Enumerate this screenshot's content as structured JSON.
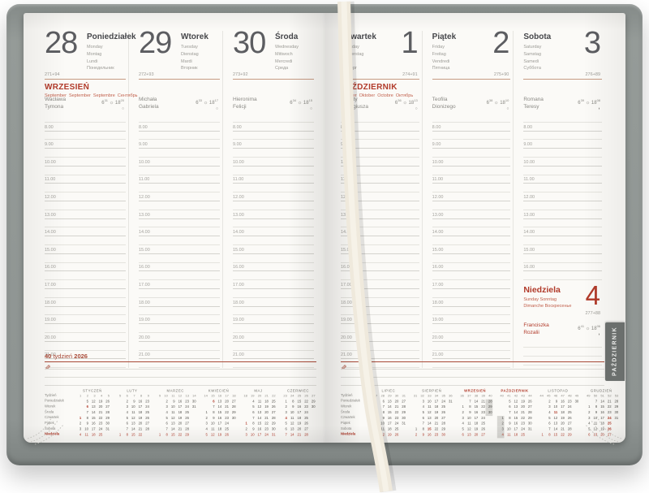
{
  "colors": {
    "accent_red": "#b13a2a",
    "rule_red": "#a94a38",
    "tan_divider": "#c79b83",
    "cover_gray": "#8e9492",
    "highlight_gray": "#d7d6d2"
  },
  "icons": {
    "sun": "☼",
    "pen": "✎"
  },
  "book": {
    "tab": "PAŹDZIERNIK",
    "week_label": {
      "week": "40",
      "word": "tydzień",
      "year": "2026"
    },
    "month_headers": {
      "left": {
        "title": "WRZESIEŃ",
        "subtitle": "September  September  Septembre  Сентябрь"
      },
      "right": {
        "title": "PAŹDZIERNIK",
        "subtitle": "October  Oktober  Octobre  Октябрь"
      }
    },
    "hours": [
      "8.00",
      "9.00",
      "10.00",
      "11.00",
      "12.00",
      "13.00",
      "14.00",
      "15.00",
      "16.00",
      "17.00",
      "18.00",
      "19.00",
      "20.00",
      "21.00"
    ],
    "days": [
      {
        "num": "28",
        "weekday": "Poniedziałek",
        "translations": [
          "Monday",
          "Montag",
          "Lundi",
          "Понедельник"
        ],
        "day_counter": "271+94",
        "name_days": [
          "Wacława",
          "Tymona"
        ],
        "sunrise": [
          "6",
          "31"
        ],
        "sunset": [
          "18",
          "20"
        ],
        "moon": "○",
        "page": "left",
        "month_header": true
      },
      {
        "num": "29",
        "weekday": "Wtorek",
        "translations": [
          "Tuesday",
          "Dienstag",
          "Mardi",
          "Вторник"
        ],
        "day_counter": "272+93",
        "name_days": [
          "Michała",
          "Gabriela"
        ],
        "sunrise": [
          "6",
          "33"
        ],
        "sunset": [
          "18",
          "17"
        ],
        "moon": "○",
        "page": "left"
      },
      {
        "num": "30",
        "weekday": "Środa",
        "translations": [
          "Wednesday",
          "Mittwoch",
          "Mercredi",
          "Среда"
        ],
        "day_counter": "273+92",
        "name_days": [
          "Hieronima",
          "Felicji"
        ],
        "sunrise": [
          "6",
          "34"
        ],
        "sunset": [
          "18",
          "15"
        ],
        "moon": "○",
        "page": "left"
      },
      {
        "num": "1",
        "weekday": "Czwartek",
        "translations": [
          "Thursday",
          "Donnerstag",
          "Jeudi",
          "Четверг"
        ],
        "day_counter": "274+91",
        "name_days": [
          "Danuty",
          "Remigiusza"
        ],
        "sunrise": [
          "6",
          "36"
        ],
        "sunset": [
          "18",
          "13"
        ],
        "moon": "○",
        "page": "right",
        "month_header": true
      },
      {
        "num": "2",
        "weekday": "Piątek",
        "translations": [
          "Friday",
          "Freitag",
          "Vendredi",
          "Пятница"
        ],
        "day_counter": "275+90",
        "name_days": [
          "Teofila",
          "Dionizego"
        ],
        "sunrise": [
          "6",
          "38"
        ],
        "sunset": [
          "18",
          "10"
        ],
        "moon": "○",
        "page": "right"
      },
      {
        "num": "3",
        "weekday": "Sobota",
        "translations": [
          "Saturday",
          "Samstag",
          "Samedi",
          "Суббота"
        ],
        "day_counter": "276+89",
        "name_days": [
          "Romana",
          "Teresy"
        ],
        "sunrise": [
          "6",
          "39"
        ],
        "sunset": [
          "18",
          "08"
        ],
        "moon": "◗",
        "page": "right",
        "saturday": true,
        "hours_count": 9
      }
    ],
    "sunday": {
      "num": "4",
      "weekday": "Niedziela",
      "translations_line1": "Sunday Sonntag",
      "translations_line2": "Dimanche Воскресенье",
      "day_counter": "277+88",
      "name_days": [
        "Franciszka",
        "Rozalii"
      ],
      "sunrise": [
        "6",
        "41"
      ],
      "sunset": [
        "18",
        "06"
      ],
      "moon": "◗"
    }
  },
  "minical": {
    "row_labels": [
      "Tydzień",
      "Poniedziałek",
      "Wtorek",
      "Środa",
      "Czwartek",
      "Piątek",
      "Sobota",
      "Niedziela"
    ],
    "left_months": [
      {
        "name": "STYCZEŃ",
        "weeks": [
          "1",
          "2",
          "3",
          "4",
          "5"
        ],
        "red": [
          1,
          6
        ],
        "hl": [],
        "rows": [
          [
            "",
            "5",
            "12",
            "19",
            "26"
          ],
          [
            "",
            "6",
            "13",
            "20",
            "27"
          ],
          [
            "",
            "7",
            "14",
            "21",
            "28"
          ],
          [
            "1",
            "8",
            "15",
            "22",
            "29"
          ],
          [
            "2",
            "9",
            "16",
            "23",
            "30"
          ],
          [
            "3",
            "10",
            "17",
            "24",
            "31"
          ],
          [
            "4",
            "11",
            "18",
            "25",
            ""
          ]
        ]
      },
      {
        "name": "LUTY",
        "weeks": [
          "5",
          "6",
          "7",
          "8",
          "9"
        ],
        "red": [],
        "hl": [],
        "rows": [
          [
            "",
            "2",
            "9",
            "16",
            "23"
          ],
          [
            "",
            "3",
            "10",
            "17",
            "24"
          ],
          [
            "",
            "4",
            "11",
            "18",
            "25"
          ],
          [
            "",
            "5",
            "12",
            "19",
            "26"
          ],
          [
            "",
            "6",
            "13",
            "20",
            "27"
          ],
          [
            "",
            "7",
            "14",
            "21",
            "28"
          ],
          [
            "1",
            "8",
            "15",
            "22",
            ""
          ]
        ]
      },
      {
        "name": "MARZEC",
        "weeks": [
          "9",
          "10",
          "11",
          "12",
          "13",
          "14"
        ],
        "red": [],
        "hl": [],
        "rows": [
          [
            "",
            "2",
            "9",
            "16",
            "23",
            "30"
          ],
          [
            "",
            "3",
            "10",
            "17",
            "24",
            "31"
          ],
          [
            "",
            "4",
            "11",
            "18",
            "25",
            ""
          ],
          [
            "",
            "5",
            "12",
            "19",
            "26",
            ""
          ],
          [
            "",
            "6",
            "13",
            "20",
            "27",
            ""
          ],
          [
            "",
            "7",
            "14",
            "21",
            "28",
            ""
          ],
          [
            "1",
            "8",
            "15",
            "22",
            "29",
            ""
          ]
        ]
      },
      {
        "name": "KWIECIEŃ",
        "weeks": [
          "14",
          "15",
          "16",
          "17",
          "18"
        ],
        "red": [
          6
        ],
        "hl": [],
        "rows": [
          [
            "",
            "6",
            "13",
            "20",
            "27"
          ],
          [
            "",
            "7",
            "14",
            "21",
            "28"
          ],
          [
            "1",
            "8",
            "15",
            "22",
            "29"
          ],
          [
            "2",
            "9",
            "16",
            "23",
            "30"
          ],
          [
            "3",
            "10",
            "17",
            "24",
            ""
          ],
          [
            "4",
            "11",
            "18",
            "25",
            ""
          ],
          [
            "5",
            "12",
            "19",
            "26",
            ""
          ]
        ]
      },
      {
        "name": "MAJ",
        "weeks": [
          "18",
          "19",
          "20",
          "21",
          "22"
        ],
        "red": [
          1
        ],
        "hl": [],
        "rows": [
          [
            "",
            "4",
            "11",
            "18",
            "25"
          ],
          [
            "",
            "5",
            "12",
            "19",
            "26"
          ],
          [
            "",
            "6",
            "13",
            "20",
            "27"
          ],
          [
            "",
            "7",
            "14",
            "21",
            "28"
          ],
          [
            "1",
            "8",
            "15",
            "22",
            "29"
          ],
          [
            "2",
            "9",
            "16",
            "23",
            "30"
          ],
          [
            "3",
            "10",
            "17",
            "24",
            "31"
          ]
        ]
      },
      {
        "name": "CZERWIEC",
        "weeks": [
          "23",
          "24",
          "25",
          "26",
          "27"
        ],
        "red": [
          4
        ],
        "hl": [],
        "rows": [
          [
            "1",
            "8",
            "15",
            "22",
            "29"
          ],
          [
            "2",
            "9",
            "16",
            "23",
            "30"
          ],
          [
            "3",
            "10",
            "17",
            "24",
            ""
          ],
          [
            "4",
            "11",
            "18",
            "25",
            ""
          ],
          [
            "5",
            "12",
            "19",
            "26",
            ""
          ],
          [
            "6",
            "13",
            "20",
            "27",
            ""
          ],
          [
            "7",
            "14",
            "21",
            "28",
            ""
          ]
        ]
      }
    ],
    "right_months": [
      {
        "name": "LIPIEC",
        "weeks": [
          "27",
          "28",
          "29",
          "30",
          "31"
        ],
        "red": [],
        "hl": [],
        "rows": [
          [
            "",
            "6",
            "13",
            "20",
            "27"
          ],
          [
            "",
            "7",
            "14",
            "21",
            "28"
          ],
          [
            "1",
            "8",
            "15",
            "22",
            "29"
          ],
          [
            "2",
            "9",
            "16",
            "23",
            "30"
          ],
          [
            "3",
            "10",
            "17",
            "24",
            "31"
          ],
          [
            "4",
            "11",
            "18",
            "25",
            ""
          ],
          [
            "5",
            "12",
            "19",
            "26",
            ""
          ]
        ]
      },
      {
        "name": "SIERPIEŃ",
        "weeks": [
          "31",
          "32",
          "33",
          "34",
          "35",
          "36"
        ],
        "red": [
          15
        ],
        "hl": [],
        "rows": [
          [
            "",
            "3",
            "10",
            "17",
            "24",
            "31"
          ],
          [
            "",
            "4",
            "11",
            "18",
            "25",
            ""
          ],
          [
            "",
            "5",
            "12",
            "19",
            "26",
            ""
          ],
          [
            "",
            "6",
            "13",
            "20",
            "27",
            ""
          ],
          [
            "",
            "7",
            "14",
            "21",
            "28",
            ""
          ],
          [
            "1",
            "8",
            "15",
            "22",
            "29",
            ""
          ],
          [
            "2",
            "9",
            "16",
            "23",
            "30",
            ""
          ]
        ]
      },
      {
        "name": "WRZESIEŃ",
        "weeks": [
          "36",
          "37",
          "38",
          "39",
          "40"
        ],
        "red": [],
        "hl": [
          28,
          29,
          30
        ],
        "red_title": true,
        "rows": [
          [
            "",
            "7",
            "14",
            "21",
            "28"
          ],
          [
            "1",
            "8",
            "15",
            "22",
            "29"
          ],
          [
            "2",
            "9",
            "16",
            "23",
            "30"
          ],
          [
            "3",
            "10",
            "17",
            "24",
            ""
          ],
          [
            "4",
            "11",
            "18",
            "25",
            ""
          ],
          [
            "5",
            "12",
            "19",
            "26",
            ""
          ],
          [
            "6",
            "13",
            "20",
            "27",
            ""
          ]
        ]
      },
      {
        "name": "PAŹDZIERNIK",
        "weeks": [
          "40",
          "41",
          "42",
          "43",
          "44"
        ],
        "red": [],
        "hl": [
          1,
          2,
          3,
          4
        ],
        "red_title": true,
        "rows": [
          [
            "",
            "5",
            "12",
            "19",
            "26"
          ],
          [
            "",
            "6",
            "13",
            "20",
            "27"
          ],
          [
            "",
            "7",
            "14",
            "21",
            "28"
          ],
          [
            "1",
            "8",
            "15",
            "22",
            "29"
          ],
          [
            "2",
            "9",
            "16",
            "23",
            "30"
          ],
          [
            "3",
            "10",
            "17",
            "24",
            "31"
          ],
          [
            "4",
            "11",
            "18",
            "25",
            ""
          ]
        ]
      },
      {
        "name": "LISTOPAD",
        "weeks": [
          "44",
          "45",
          "46",
          "47",
          "48",
          "49"
        ],
        "red": [
          11
        ],
        "hl": [],
        "rows": [
          [
            "",
            "2",
            "9",
            "16",
            "23",
            "30"
          ],
          [
            "",
            "3",
            "10",
            "17",
            "24",
            ""
          ],
          [
            "",
            "4",
            "11",
            "18",
            "25",
            ""
          ],
          [
            "",
            "5",
            "12",
            "19",
            "26",
            ""
          ],
          [
            "",
            "6",
            "13",
            "20",
            "27",
            ""
          ],
          [
            "",
            "7",
            "14",
            "21",
            "28",
            ""
          ],
          [
            "1",
            "8",
            "15",
            "22",
            "29",
            ""
          ]
        ]
      },
      {
        "name": "GRUDZIEŃ",
        "weeks": [
          "49",
          "50",
          "51",
          "52",
          "53"
        ],
        "red": [
          24,
          25,
          26
        ],
        "hl": [],
        "rows": [
          [
            "",
            "7",
            "14",
            "21",
            "28"
          ],
          [
            "1",
            "8",
            "15",
            "22",
            "29"
          ],
          [
            "2",
            "9",
            "16",
            "23",
            "30"
          ],
          [
            "3",
            "10",
            "17",
            "24",
            "31"
          ],
          [
            "4",
            "11",
            "18",
            "25",
            ""
          ],
          [
            "5",
            "12",
            "19",
            "26",
            ""
          ],
          [
            "6",
            "13",
            "20",
            "27",
            ""
          ]
        ]
      }
    ]
  }
}
